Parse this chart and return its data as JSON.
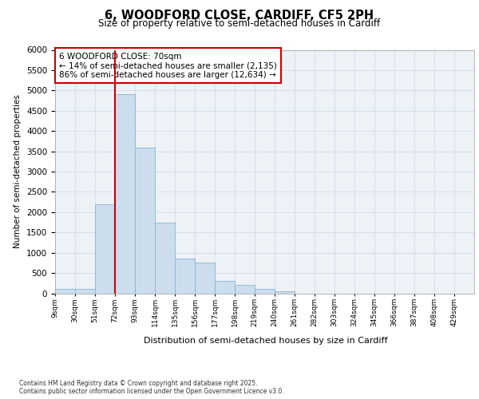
{
  "title1": "6, WOODFORD CLOSE, CARDIFF, CF5 2PH",
  "title2": "Size of property relative to semi-detached houses in Cardiff",
  "xlabel": "Distribution of semi-detached houses by size in Cardiff",
  "ylabel": "Number of semi-detached properties",
  "footnote": "Contains HM Land Registry data © Crown copyright and database right 2025.\nContains public sector information licensed under the Open Government Licence v3.0.",
  "bin_labels": [
    "9sqm",
    "30sqm",
    "51sqm",
    "72sqm",
    "93sqm",
    "114sqm",
    "135sqm",
    "156sqm",
    "177sqm",
    "198sqm",
    "219sqm",
    "240sqm",
    "261sqm",
    "282sqm",
    "303sqm",
    "324sqm",
    "345sqm",
    "366sqm",
    "387sqm",
    "408sqm",
    "429sqm"
  ],
  "bin_edges": [
    9,
    30,
    51,
    72,
    93,
    114,
    135,
    156,
    177,
    198,
    219,
    240,
    261,
    282,
    303,
    324,
    345,
    366,
    387,
    408,
    429
  ],
  "bar_values": [
    100,
    100,
    2200,
    4900,
    3600,
    1750,
    850,
    750,
    300,
    200,
    100,
    50,
    0,
    0,
    0,
    0,
    0,
    0,
    0,
    0
  ],
  "bar_color": "#ccdded",
  "bar_edge_color": "#8ab4cc",
  "grid_color": "#d0dce8",
  "property_line_x": 72,
  "pct_smaller": "14%",
  "pct_smaller_n": "2,135",
  "pct_larger": "86%",
  "pct_larger_n": "12,634",
  "annotation_box_color": "#cc0000",
  "ylim": [
    0,
    6000
  ],
  "yticks": [
    0,
    500,
    1000,
    1500,
    2000,
    2500,
    3000,
    3500,
    4000,
    4500,
    5000,
    5500,
    6000
  ],
  "bg_color": "#edf2f7",
  "title1_fontsize": 10.5,
  "title2_fontsize": 8.5
}
